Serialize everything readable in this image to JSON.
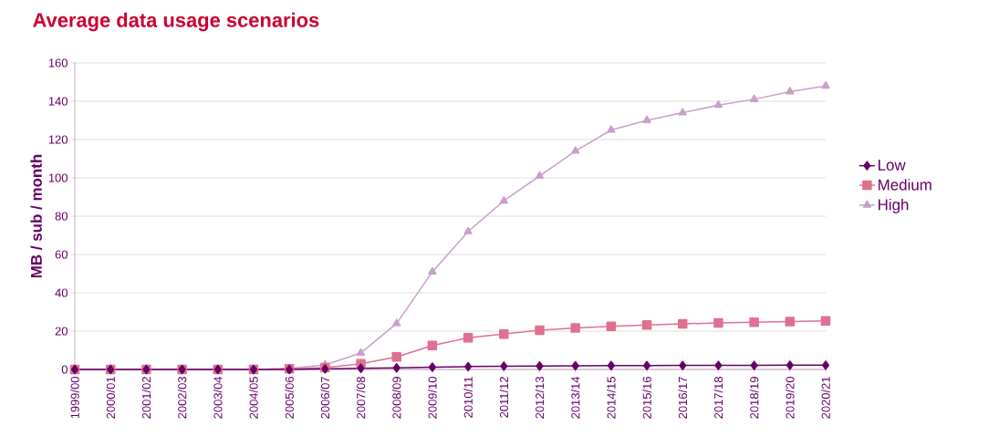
{
  "chart_data": {
    "type": "line",
    "title": "Average data usage scenarios",
    "ylabel": "MB / sub / month",
    "categories": [
      "1999/00",
      "2000/01",
      "2001/02",
      "2002/03",
      "2003/04",
      "2004/05",
      "2005/06",
      "2006/07",
      "2007/08",
      "2008/09",
      "2009/10",
      "2010/11",
      "2011/12",
      "2012/13",
      "2013/14",
      "2014/15",
      "2015/16",
      "2016/17",
      "2017/18",
      "2018/19",
      "2019/20",
      "2020/21"
    ],
    "series": [
      {
        "name": "Low",
        "color": "#660066",
        "marker": "diamond",
        "values": [
          0,
          0,
          0,
          0,
          0,
          0,
          0,
          0.3,
          0.6,
          0.8,
          1.2,
          1.5,
          1.7,
          1.8,
          1.9,
          2.0,
          2.0,
          2.1,
          2.1,
          2.1,
          2.2,
          2.2
        ]
      },
      {
        "name": "Medium",
        "color": "#e07090",
        "marker": "square",
        "values": [
          0,
          0,
          0,
          0,
          0,
          0,
          0.3,
          1,
          3,
          6.5,
          12.5,
          16.5,
          18.5,
          20.5,
          21.7,
          22.5,
          23.2,
          23.8,
          24.3,
          24.6,
          25,
          25.3
        ]
      },
      {
        "name": "High",
        "color": "#c8a0c8",
        "marker": "triangle",
        "values": [
          0,
          0,
          0,
          0,
          0,
          0,
          0.5,
          2.4,
          8.6,
          24,
          51,
          72,
          88,
          101,
          114,
          125,
          130,
          134,
          138,
          141,
          145,
          148
        ]
      }
    ],
    "ylim": [
      0,
      160
    ],
    "yticks": [
      0,
      20,
      40,
      60,
      80,
      100,
      120,
      140,
      160
    ],
    "grid": "y",
    "legend": "right",
    "line_style": "solid"
  }
}
